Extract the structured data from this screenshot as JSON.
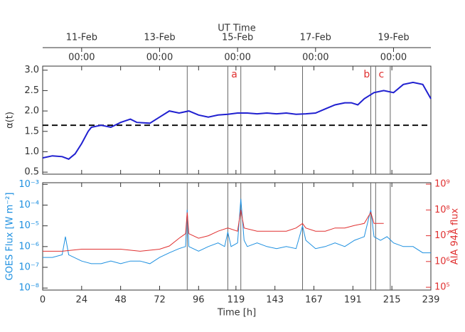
{
  "chart_data": [
    {
      "type": "line",
      "top_axis_label": "UT Time",
      "top_xticks": [
        {
          "value": 24,
          "label": "11-Feb"
        },
        {
          "value": 72,
          "label": "13-Feb"
        },
        {
          "value": 120,
          "label": "15-Feb"
        },
        {
          "value": 168,
          "label": "17-Feb"
        },
        {
          "value": 216,
          "label": "19-Feb"
        }
      ],
      "top_tick_sublabels": [
        "00:00",
        "00:00",
        "00:00",
        "00:00",
        "00:00"
      ],
      "ylabel": "α(t)",
      "xlim": [
        0,
        239
      ],
      "ylim": [
        0.45,
        3.1
      ],
      "yticks": [
        {
          "value": 0.5,
          "label": "0.5"
        },
        {
          "value": 1,
          "label": "1.0"
        },
        {
          "value": 1.5,
          "label": "1.5"
        },
        {
          "value": 2,
          "label": "2.0"
        },
        {
          "value": 2.5,
          "label": "2.5"
        },
        {
          "value": 3,
          "label": "3.0"
        }
      ],
      "xticks": [
        0,
        24,
        48,
        72,
        96,
        119,
        143,
        167,
        191,
        215,
        239
      ],
      "hline": 1.65,
      "event_lines": [
        89,
        114,
        122,
        160,
        202,
        205,
        214
      ],
      "annotations": [
        {
          "text": "a",
          "x": 118
        },
        {
          "text": "b",
          "x": 199.5
        },
        {
          "text": "c",
          "x": 208.5
        }
      ],
      "series": [
        {
          "name": "alpha",
          "color": "#2020d0",
          "x": [
            0,
            6,
            12,
            16,
            20,
            24,
            28,
            30,
            36,
            42,
            48,
            54,
            58,
            66,
            72,
            78,
            84,
            90,
            96,
            102,
            108,
            114,
            120,
            126,
            132,
            138,
            144,
            150,
            156,
            162,
            168,
            174,
            180,
            186,
            190,
            194,
            198,
            204,
            210,
            216,
            222,
            228,
            234,
            239
          ],
          "values": [
            0.85,
            0.9,
            0.88,
            0.82,
            0.95,
            1.2,
            1.5,
            1.6,
            1.65,
            1.6,
            1.72,
            1.8,
            1.72,
            1.7,
            1.85,
            2.0,
            1.95,
            2.0,
            1.9,
            1.85,
            1.9,
            1.92,
            1.95,
            1.95,
            1.93,
            1.95,
            1.93,
            1.95,
            1.92,
            1.93,
            1.95,
            2.05,
            2.15,
            2.2,
            2.2,
            2.15,
            2.3,
            2.45,
            2.5,
            2.45,
            2.65,
            2.7,
            2.65,
            2.3
          ]
        }
      ]
    },
    {
      "type": "line",
      "xlabel": "Time [h]",
      "ylabel": "GOES Flux [W m⁻²]",
      "y2label": "AIA 94Å flux",
      "log": true,
      "xlim": [
        0,
        239
      ],
      "ylim": [
        8e-09,
        0.0012
      ],
      "y2lim": [
        78000,
        1140000000
      ],
      "xticks": [
        0,
        24,
        48,
        72,
        96,
        119,
        143,
        167,
        191,
        215,
        239
      ],
      "yticks": [
        {
          "value": 1e-08,
          "label": "10⁻⁸"
        },
        {
          "value": 1e-07,
          "label": "10⁻⁷"
        },
        {
          "value": 1e-06,
          "label": "10⁻⁶"
        },
        {
          "value": 1e-05,
          "label": "10⁻⁵"
        },
        {
          "value": 0.0001,
          "label": "10⁻⁴"
        },
        {
          "value": 0.001,
          "label": "10⁻³"
        }
      ],
      "y2ticks": [
        {
          "value": 100000,
          "label": "10⁵"
        },
        {
          "value": 1000000,
          "label": "10⁶"
        },
        {
          "value": 10000000,
          "label": "10⁷"
        },
        {
          "value": 100000000,
          "label": "10⁸"
        },
        {
          "value": 1000000000,
          "label": "10⁹"
        }
      ],
      "series": [
        {
          "name": "GOES",
          "color": "#1e90e0",
          "x": [
            0,
            6,
            12,
            14,
            16,
            24,
            30,
            36,
            42,
            48,
            54,
            60,
            66,
            72,
            78,
            84,
            88,
            89,
            90,
            96,
            102,
            108,
            112,
            114,
            116,
            120,
            122,
            124,
            126,
            132,
            138,
            144,
            150,
            156,
            160,
            162,
            168,
            174,
            180,
            186,
            192,
            198,
            202,
            204,
            208,
            212,
            216,
            222,
            228,
            234,
            239
          ],
          "values": [
            3e-07,
            3e-07,
            4e-07,
            3e-06,
            4e-07,
            2e-07,
            1.5e-07,
            1.5e-07,
            2e-07,
            1.5e-07,
            2e-07,
            2e-07,
            1.5e-07,
            3e-07,
            5e-07,
            8e-07,
            1e-06,
            6e-05,
            1e-06,
            6e-07,
            1e-06,
            1.5e-06,
            1e-06,
            5e-06,
            1e-06,
            1.5e-06,
            0.0002,
            2e-06,
            1e-06,
            1.5e-06,
            1e-06,
            8e-07,
            1e-06,
            8e-07,
            1e-05,
            2e-06,
            8e-07,
            1e-06,
            1.5e-06,
            1e-06,
            2e-06,
            3e-06,
            6e-05,
            3e-06,
            2e-06,
            3e-06,
            1.5e-06,
            1e-06,
            1e-06,
            5e-07,
            5e-07
          ]
        },
        {
          "name": "AIA",
          "color": "#e03030",
          "axis": "y2",
          "x": [
            0,
            12,
            24,
            36,
            48,
            60,
            72,
            78,
            84,
            88,
            89,
            90,
            96,
            102,
            108,
            114,
            120,
            122,
            124,
            132,
            144,
            150,
            156,
            160,
            162,
            168,
            174,
            180,
            186,
            192,
            198,
            202,
            204,
            210
          ],
          "values": [
            2500000,
            2500000,
            3000000,
            3000000,
            3000000,
            2500000,
            3000000,
            4000000,
            8000000,
            12000000,
            80000000,
            12000000,
            8000000,
            10000000,
            15000000,
            20000000,
            15000000,
            100000000,
            20000000,
            15000000,
            15000000,
            15000000,
            20000000,
            30000000,
            20000000,
            15000000,
            15000000,
            20000000,
            20000000,
            25000000,
            30000000,
            80000000,
            30000000,
            30000000
          ]
        }
      ]
    }
  ]
}
